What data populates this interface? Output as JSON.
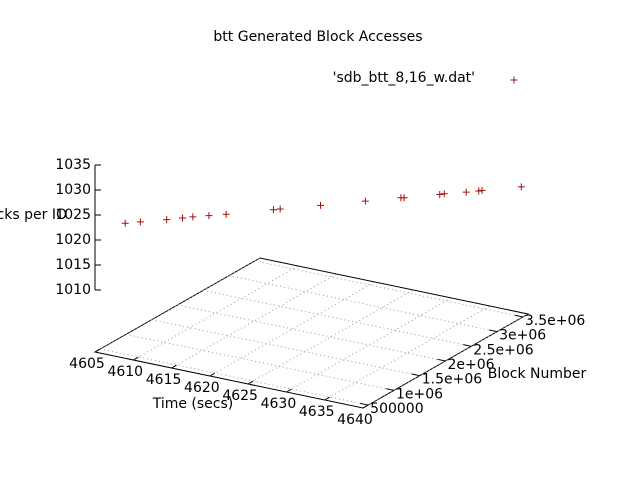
{
  "chart_data": {
    "type": "scatter3d",
    "title": "btt Generated Block Accesses",
    "xlabel": "Time (secs)",
    "ylabel": "Block Number",
    "zlabel": "Blocks per IO",
    "legend": "top-right",
    "grid": true,
    "xlim": [
      4605,
      4640
    ],
    "ylim": [
      400000,
      3600000
    ],
    "zlim": [
      1010,
      1035
    ],
    "xticks": [
      4605,
      4610,
      4615,
      4620,
      4625,
      4630,
      4635,
      4640
    ],
    "yticks": [
      500000,
      {
        "value": 1000000,
        "label": "1e+06"
      },
      {
        "value": 1500000,
        "label": "1.5e+06"
      },
      {
        "value": 2000000,
        "label": "2e+06"
      },
      {
        "value": 2500000,
        "label": "2.5e+06"
      },
      {
        "value": 3000000,
        "label": "3e+06"
      },
      {
        "value": 3500000,
        "label": "3.5e+06"
      }
    ],
    "zticks": [
      1010,
      1015,
      1020,
      1025,
      1030,
      1035
    ],
    "series": [
      {
        "name": "'sdb_btt_8,16_w.dat'",
        "color": "#a01010",
        "x": [
          4605.5,
          4606.8,
          4609.1,
          4610.5,
          4611.4,
          4612.8,
          4614.3,
          4618.4,
          4619.0,
          4622.5,
          4626.4,
          4629.5,
          4629.8,
          4632.9,
          4633.3,
          4635.2,
          4636.3,
          4636.6,
          4640
        ],
        "y": [
          912000,
          1012000,
          1181000,
          1280000,
          1347000,
          1452000,
          1562000,
          1871000,
          1912000,
          2175000,
          2465000,
          2695000,
          2713000,
          2943000,
          2971000,
          3114000,
          3194000,
          3214000,
          3470000
        ],
        "z": [
          1020.5,
          1020.6,
          1020.8,
          1021.0,
          1021.1,
          1021.2,
          1021.3,
          1021.7,
          1021.8,
          1022.1,
          1022.5,
          1022.8,
          1022.8,
          1023.1,
          1023.2,
          1023.3,
          1023.4,
          1023.5,
          1023.8
        ]
      }
    ]
  }
}
